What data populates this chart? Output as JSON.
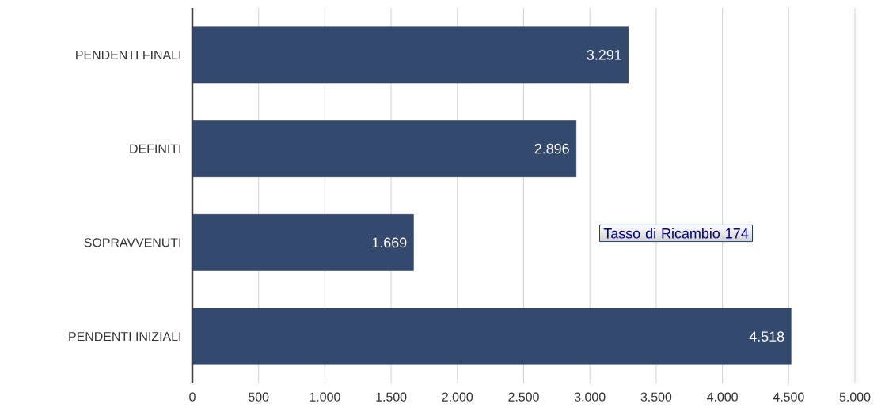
{
  "chart_data": {
    "type": "bar",
    "orientation": "horizontal",
    "categories": [
      "PENDENTI FINALI",
      "DEFINITI",
      "SOPRAVVENUTI",
      "PENDENTI INIZIALI"
    ],
    "values": [
      3291,
      2896,
      1669,
      4518
    ],
    "value_labels": [
      "3.291",
      "2.896",
      "1.669",
      "4.518"
    ],
    "color": "#34496e",
    "xlim": [
      0,
      5000
    ],
    "xticks": [
      0,
      500,
      {
        "value": 1000,
        "label": "1.000"
      },
      {
        "value": 1500,
        "label": "1.500"
      },
      {
        "value": 2000,
        "label": "2.000"
      },
      {
        "value": 2500,
        "label": "2.500"
      },
      {
        "value": 3000,
        "label": "3.000"
      },
      {
        "value": 3500,
        "label": "3.500"
      },
      {
        "value": 4000,
        "label": "4.000"
      },
      {
        "value": 4500,
        "label": "4.500"
      },
      {
        "value": 5000,
        "label": "5.000"
      }
    ],
    "grid": "x",
    "annotations": [
      "Tasso di Ricambio 174"
    ]
  }
}
